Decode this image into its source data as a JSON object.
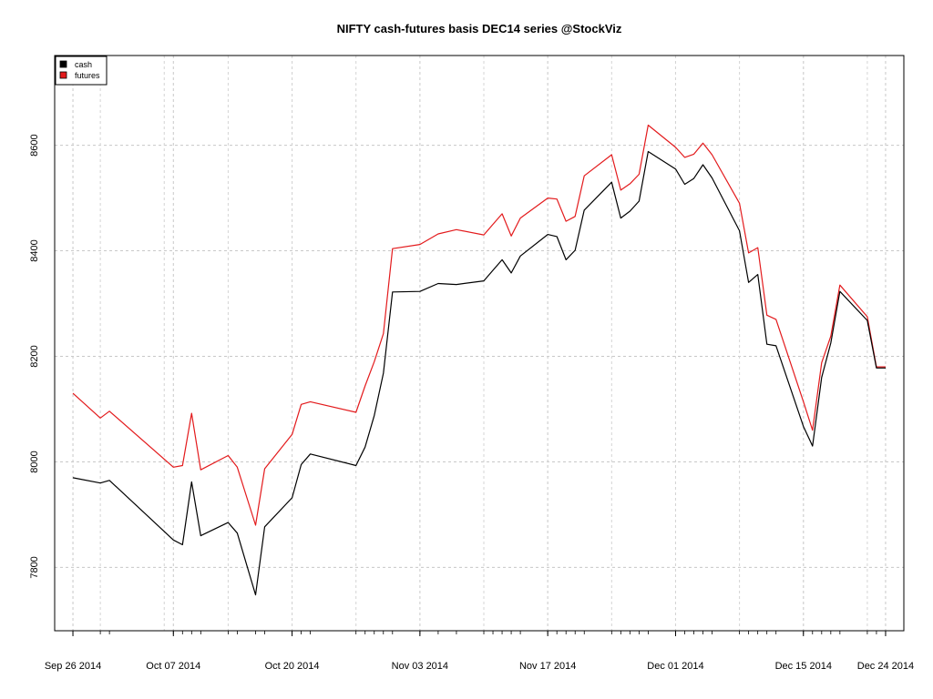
{
  "chart_data": {
    "type": "line",
    "title": "NIFTY cash-futures basis DEC14 series @StockViz",
    "xlabel": "",
    "ylabel": "",
    "ylim": [
      7680,
      8770
    ],
    "yticks": [
      7800,
      8000,
      8200,
      8400,
      8600
    ],
    "xlim": [
      "2014-09-24",
      "2014-12-26"
    ],
    "x_tick_labels": [
      {
        "date": "2014-09-26",
        "label": "Sep 26 2014"
      },
      {
        "date": "2014-10-07",
        "label": "Oct 07 2014"
      },
      {
        "date": "2014-10-20",
        "label": "Oct 20 2014"
      },
      {
        "date": "2014-11-03",
        "label": "Nov 03 2014"
      },
      {
        "date": "2014-11-17",
        "label": "Nov 17 2014"
      },
      {
        "date": "2014-12-01",
        "label": "Dec 01 2014"
      },
      {
        "date": "2014-12-15",
        "label": "Dec 15 2014"
      },
      {
        "date": "2014-12-24",
        "label": "Dec 24 2014"
      }
    ],
    "grid": true,
    "legend_position": "top-left",
    "x": [
      "2014-09-26",
      "2014-09-29",
      "2014-09-30",
      "2014-10-07",
      "2014-10-08",
      "2014-10-09",
      "2014-10-10",
      "2014-10-13",
      "2014-10-14",
      "2014-10-16",
      "2014-10-17",
      "2014-10-20",
      "2014-10-21",
      "2014-10-22",
      "2014-10-27",
      "2014-10-28",
      "2014-10-29",
      "2014-10-30",
      "2014-10-31",
      "2014-11-03",
      "2014-11-05",
      "2014-11-07",
      "2014-11-10",
      "2014-11-11",
      "2014-11-12",
      "2014-11-13",
      "2014-11-14",
      "2014-11-17",
      "2014-11-18",
      "2014-11-19",
      "2014-11-20",
      "2014-11-21",
      "2014-11-24",
      "2014-11-25",
      "2014-11-26",
      "2014-11-27",
      "2014-11-28",
      "2014-12-01",
      "2014-12-02",
      "2014-12-03",
      "2014-12-04",
      "2014-12-05",
      "2014-12-08",
      "2014-12-09",
      "2014-12-10",
      "2014-12-11",
      "2014-12-12",
      "2014-12-15",
      "2014-12-16",
      "2014-12-17",
      "2014-12-18",
      "2014-12-19",
      "2014-12-22",
      "2014-12-23",
      "2014-12-24"
    ],
    "series": [
      {
        "name": "cash",
        "color": "#000000",
        "values": [
          7970,
          7960,
          7965,
          7852,
          7843,
          7962,
          7860,
          7885,
          7865,
          7748,
          7877,
          7932,
          7995,
          8015,
          7993,
          8028,
          8088,
          8168,
          8322,
          8323,
          8338,
          8336,
          8343,
          8363,
          8383,
          8358,
          8390,
          8431,
          8427,
          8383,
          8401,
          8477,
          8530,
          8462,
          8475,
          8494,
          8588,
          8555,
          8526,
          8537,
          8563,
          8538,
          8438,
          8340,
          8355,
          8223,
          8220,
          8067,
          8030,
          8160,
          8225,
          8323,
          8268,
          8178,
          8178
        ]
      },
      {
        "name": "futures",
        "color": "#e31a1c",
        "values": [
          8130,
          8083,
          8096,
          7990,
          7993,
          8092,
          7985,
          8012,
          7990,
          7880,
          7987,
          8052,
          8109,
          8114,
          8094,
          8144,
          8190,
          8243,
          8404,
          8412,
          8432,
          8440,
          8430,
          8450,
          8470,
          8428,
          8462,
          8500,
          8498,
          8456,
          8465,
          8542,
          8582,
          8515,
          8527,
          8545,
          8638,
          8596,
          8577,
          8583,
          8604,
          8582,
          8490,
          8396,
          8406,
          8278,
          8270,
          8114,
          8060,
          8188,
          8238,
          8335,
          8275,
          8180,
          8180
        ]
      }
    ]
  }
}
